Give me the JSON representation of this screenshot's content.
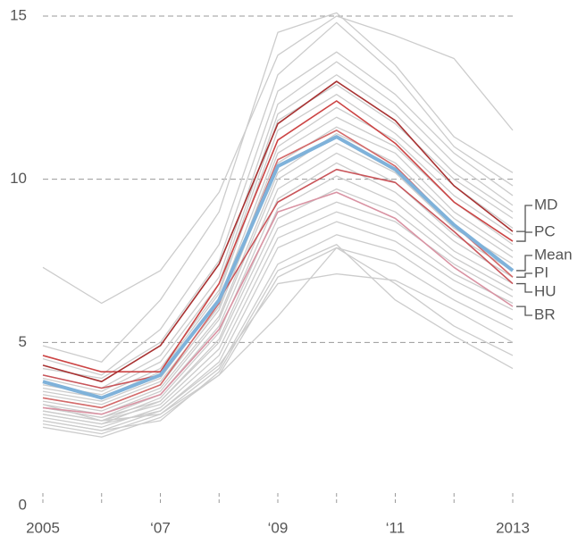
{
  "chart_data": {
    "type": "line",
    "categories": [
      "2005",
      null,
      "‘07",
      null,
      "‘09",
      null,
      "‘11",
      null,
      "2013"
    ],
    "ylim": [
      0,
      15
    ],
    "yticks": [
      0,
      5,
      10,
      15
    ],
    "grid": true,
    "series": [
      {
        "color": "#cccccc",
        "values": [
          7.3,
          6.2,
          7.2,
          9.6,
          13.8,
          15.0,
          14.4,
          13.7,
          11.5
        ]
      },
      {
        "color": "#cccccc",
        "values": [
          4.9,
          4.4,
          6.3,
          9.0,
          14.5,
          15.1,
          13.5,
          11.3,
          10.2
        ]
      },
      {
        "color": "#cccccc",
        "values": [
          4.5,
          4.0,
          5.4,
          8.0,
          13.2,
          14.8,
          13.2,
          11.0,
          9.8
        ]
      },
      {
        "color": "#cccccc",
        "values": [
          4.2,
          3.9,
          5.0,
          7.5,
          12.7,
          13.9,
          12.6,
          10.8,
          9.5
        ]
      },
      {
        "color": "#cccccc",
        "values": [
          4.0,
          3.6,
          4.6,
          7.0,
          12.3,
          13.6,
          12.3,
          10.5,
          9.2
        ]
      },
      {
        "color": "#cccccc",
        "values": [
          3.9,
          3.5,
          4.4,
          6.8,
          12.0,
          13.2,
          12.0,
          10.2,
          9.0
        ]
      },
      {
        "color": "#cccccc",
        "values": [
          3.7,
          3.4,
          4.2,
          6.6,
          11.8,
          12.9,
          11.7,
          10.0,
          8.8
        ]
      },
      {
        "color": "#cccccc",
        "values": [
          3.6,
          3.3,
          4.1,
          6.5,
          11.5,
          12.6,
          11.4,
          9.8,
          8.5
        ]
      },
      {
        "color": "#cccccc",
        "values": [
          3.5,
          3.2,
          3.9,
          6.3,
          11.0,
          12.2,
          11.2,
          9.5,
          8.3
        ]
      },
      {
        "color": "#cccccc",
        "values": [
          3.4,
          3.1,
          3.8,
          6.1,
          10.8,
          11.9,
          11.0,
          9.3,
          8.0
        ]
      },
      {
        "color": "#cccccc",
        "values": [
          3.3,
          3.0,
          3.7,
          6.0,
          10.5,
          11.6,
          10.8,
          9.0,
          7.8
        ]
      },
      {
        "color": "#cccccc",
        "values": [
          3.2,
          2.9,
          3.6,
          5.8,
          10.2,
          11.4,
          10.5,
          8.8,
          7.6
        ]
      },
      {
        "color": "#cccccc",
        "values": [
          3.1,
          2.8,
          3.5,
          5.7,
          10.0,
          11.1,
          10.2,
          8.5,
          7.4
        ]
      },
      {
        "color": "#cccccc",
        "values": [
          3.0,
          2.7,
          3.4,
          5.5,
          9.7,
          10.8,
          9.9,
          8.3,
          7.2
        ]
      },
      {
        "color": "#cccccc",
        "values": [
          2.9,
          2.6,
          3.3,
          5.3,
          9.4,
          10.5,
          9.6,
          8.1,
          7.0
        ]
      },
      {
        "color": "#cccccc",
        "values": [
          2.8,
          2.5,
          3.2,
          5.1,
          9.1,
          10.1,
          9.3,
          7.8,
          6.8
        ]
      },
      {
        "color": "#cccccc",
        "values": [
          3.0,
          2.7,
          3.2,
          5.0,
          8.8,
          9.7,
          9.0,
          7.6,
          6.6
        ]
      },
      {
        "color": "#cccccc",
        "values": [
          2.9,
          2.6,
          3.1,
          4.8,
          8.5,
          9.3,
          8.7,
          7.4,
          6.4
        ]
      },
      {
        "color": "#cccccc",
        "values": [
          2.7,
          2.4,
          3.0,
          4.6,
          8.2,
          9.0,
          8.4,
          7.1,
          6.2
        ]
      },
      {
        "color": "#cccccc",
        "values": [
          2.6,
          2.3,
          2.9,
          4.4,
          7.9,
          8.7,
          8.1,
          6.9,
          6.0
        ]
      },
      {
        "color": "#cccccc",
        "values": [
          2.5,
          2.2,
          2.8,
          4.2,
          7.4,
          8.3,
          7.8,
          6.6,
          5.7
        ]
      },
      {
        "color": "#cccccc",
        "values": [
          2.4,
          2.1,
          2.7,
          4.0,
          7.0,
          7.9,
          7.4,
          6.3,
          5.4
        ]
      },
      {
        "color": "#cccccc",
        "values": [
          2.8,
          2.5,
          2.9,
          4.3,
          6.8,
          7.1,
          6.9,
          6.0,
          5.0
        ]
      },
      {
        "color": "#cccccc",
        "values": [
          3.1,
          2.6,
          2.8,
          4.0,
          5.8,
          7.9,
          6.8,
          5.5,
          4.6
        ]
      },
      {
        "color": "#cccccc",
        "values": [
          2.6,
          2.3,
          2.6,
          4.1,
          7.2,
          8.0,
          6.3,
          5.2,
          4.2
        ]
      },
      {
        "name": "BR",
        "color": "#d993a3",
        "values": [
          3.0,
          2.8,
          3.4,
          5.4,
          9.0,
          9.6,
          8.8,
          7.3,
          6.1
        ]
      },
      {
        "name": "HU",
        "color": "#c9555a",
        "values": [
          4.0,
          3.6,
          4.0,
          6.3,
          9.3,
          10.3,
          9.9,
          8.4,
          6.8
        ]
      },
      {
        "name": "PI",
        "color": "#d46a6a",
        "values": [
          3.3,
          3.0,
          3.7,
          6.2,
          10.6,
          11.5,
          10.4,
          8.6,
          7.0
        ]
      },
      {
        "name": "PC",
        "color": "#cc4444",
        "values": [
          4.6,
          4.1,
          4.1,
          6.8,
          11.2,
          12.4,
          11.1,
          9.3,
          8.1
        ]
      },
      {
        "name": "MD",
        "color": "#a83232",
        "values": [
          4.3,
          3.8,
          4.9,
          7.4,
          11.7,
          13.0,
          11.8,
          9.8,
          8.4
        ]
      },
      {
        "name": "Mean",
        "color": "#7fb2da",
        "values": [
          3.8,
          3.3,
          4.0,
          6.3,
          10.4,
          11.3,
          10.3,
          8.6,
          7.2
        ]
      }
    ]
  }
}
